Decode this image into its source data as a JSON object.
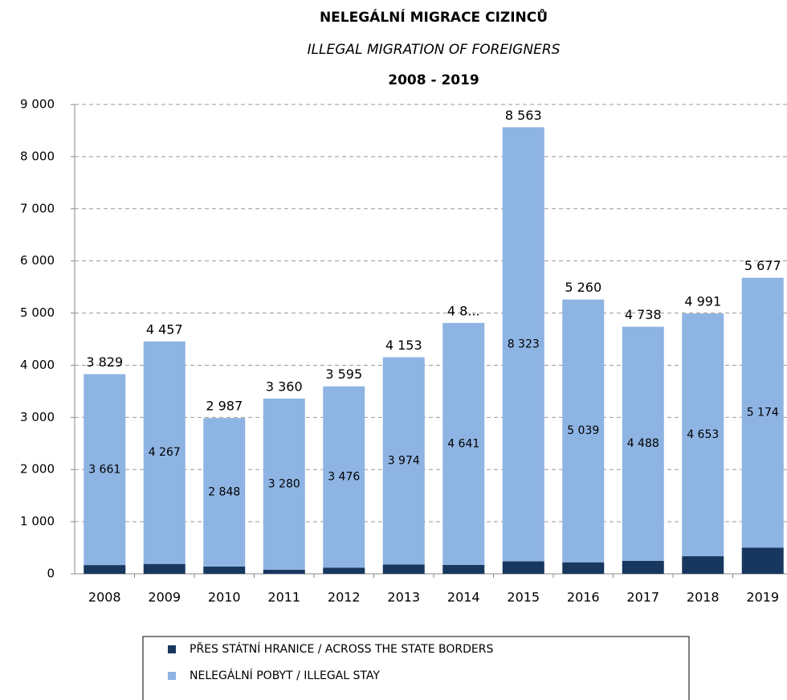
{
  "chart_data": {
    "type": "stacked_bar",
    "title": "NELEGÁLNÍ MIGRACE CIZINCŮ",
    "subtitle": "ILLEGAL MIGRATION OF FOREIGNERS",
    "period": "2008 - 2019",
    "categories": [
      "2008",
      "2009",
      "2010",
      "2011",
      "2012",
      "2013",
      "2014",
      "2015",
      "2016",
      "2017",
      "2018",
      "2019"
    ],
    "series": [
      {
        "name": "PŘES STÁTNÍ HRANICE / ACROSS THE STATE BORDERS",
        "color": "#17375e",
        "values": [
          168,
          190,
          139,
          80,
          119,
          179,
          170,
          240,
          221,
          250,
          338,
          503
        ]
      },
      {
        "name": "NELEGÁLNÍ POBYT / ILLEGAL STAY",
        "color": "#8eb4e3",
        "values": [
          3661,
          4267,
          2848,
          3280,
          3476,
          3974,
          4641,
          8323,
          5039,
          4488,
          4653,
          5174
        ],
        "value_labels": [
          "3 661",
          "4 267",
          "2 848",
          "3 280",
          "3 476",
          "3 974",
          "4 641",
          "8 323",
          "5 039",
          "4 488",
          "4 653",
          "5 174"
        ]
      }
    ],
    "total_labels": [
      "3 829",
      "4 457",
      "2 987",
      "3 360",
      "3 595",
      "4 153",
      "4 8...",
      "8 563",
      "5 260",
      "4 738",
      "4 991",
      "5 677"
    ],
    "ylim": [
      0,
      9000
    ],
    "yticks": [
      0,
      {
        "value": 1000,
        "label": "1 000"
      },
      {
        "value": 2000,
        "label": "2 000"
      },
      {
        "value": 3000,
        "label": "3 000"
      },
      {
        "value": 4000,
        "label": "4 000"
      },
      {
        "value": 5000,
        "label": "5 000"
      },
      {
        "value": 6000,
        "label": "6 000"
      },
      {
        "value": 7000,
        "label": "7 000"
      },
      {
        "value": 8000,
        "label": "8 000"
      },
      {
        "value": 9000,
        "label": "9 000"
      }
    ],
    "grid": true
  }
}
